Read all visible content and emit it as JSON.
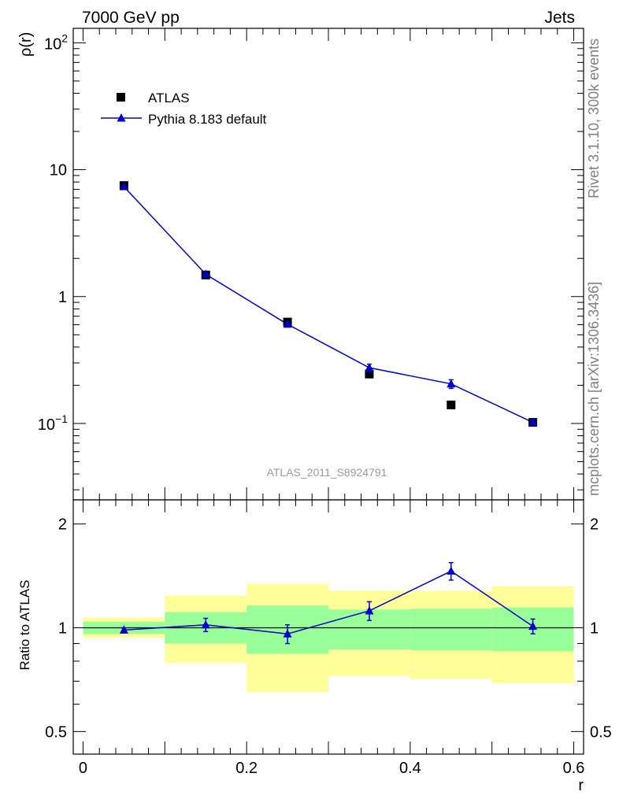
{
  "header": {
    "left": "7000 GeV pp",
    "right": "Jets"
  },
  "watermark": "ATLAS_2011_S8924791",
  "side_notes": {
    "rivet": "Rivet 3.1.10,  300k events",
    "mcplots": "mcplots.cern.ch [arXiv:1306.3436]"
  },
  "colors": {
    "mc": "#0000cc",
    "band_inner": "#99ff99",
    "band_outer": "#ffff99",
    "data": "#000000"
  },
  "chart_data": [
    {
      "type": "scatter",
      "name": "main",
      "ylabel": "ρ(r)",
      "yscale": "log",
      "ylim": [
        0.025,
        130
      ],
      "xlim": [
        -0.012,
        0.612
      ],
      "y_ticks": [
        {
          "value": 0.1,
          "base": "10",
          "exp": "−1"
        },
        {
          "value": 1,
          "label": "1"
        },
        {
          "value": 10,
          "label": "10"
        },
        {
          "value": 100,
          "base": "10",
          "exp": "2"
        }
      ],
      "legend": {
        "placement": "top-left",
        "entries": [
          "ATLAS",
          "Pythia 8.183 default"
        ]
      },
      "series": [
        {
          "name": "ATLAS",
          "marker": "square",
          "x": [
            0.05,
            0.15,
            0.25,
            0.35,
            0.45,
            0.55
          ],
          "y": [
            7.5,
            1.48,
            0.63,
            0.245,
            0.14,
            0.102
          ]
        },
        {
          "name": "Pythia 8.183 default",
          "marker": "triangle",
          "x": [
            0.05,
            0.15,
            0.25,
            0.35,
            0.45,
            0.55
          ],
          "y": [
            7.35,
            1.5,
            0.605,
            0.275,
            0.205,
            0.102
          ],
          "yerr": [
            0.1,
            0.03,
            0.02,
            0.018,
            0.016,
            0.005
          ]
        }
      ]
    },
    {
      "type": "scatter",
      "name": "ratio",
      "ylabel": "Ratio to ATLAS",
      "xlabel": "r",
      "yscale": "log",
      "ylim": [
        0.43,
        2.35
      ],
      "xlim": [
        -0.012,
        0.612
      ],
      "x_ticks": [
        {
          "value": 0,
          "label": "0"
        },
        {
          "value": 0.2,
          "label": "0.2"
        },
        {
          "value": 0.4,
          "label": "0.4"
        },
        {
          "value": 0.6,
          "label": "0.6"
        }
      ],
      "y_ticks": [
        {
          "value": 0.5,
          "label": "0.5"
        },
        {
          "value": 1,
          "label": "1"
        },
        {
          "value": 2,
          "label": "2"
        }
      ],
      "bands": [
        {
          "x0": 0.0,
          "x1": 0.1,
          "inner": [
            0.96,
            1.04
          ],
          "outer": [
            0.935,
            1.07
          ]
        },
        {
          "x0": 0.1,
          "x1": 0.2,
          "inner": [
            0.9,
            1.11
          ],
          "outer": [
            0.79,
            1.24
          ]
        },
        {
          "x0": 0.2,
          "x1": 0.3,
          "inner": [
            0.84,
            1.16
          ],
          "outer": [
            0.65,
            1.34
          ]
        },
        {
          "x0": 0.3,
          "x1": 0.4,
          "inner": [
            0.865,
            1.13
          ],
          "outer": [
            0.725,
            1.28
          ]
        },
        {
          "x0": 0.4,
          "x1": 0.5,
          "inner": [
            0.86,
            1.135
          ],
          "outer": [
            0.71,
            1.28
          ]
        },
        {
          "x0": 0.5,
          "x1": 0.6,
          "inner": [
            0.855,
            1.145
          ],
          "outer": [
            0.69,
            1.32
          ]
        }
      ],
      "series": [
        {
          "name": "Pythia 8.183 default / ATLAS",
          "x": [
            0.05,
            0.15,
            0.25,
            0.35,
            0.45,
            0.55
          ],
          "y": [
            0.985,
            1.02,
            0.96,
            1.12,
            1.46,
            1.01
          ],
          "yerr": [
            0.012,
            0.045,
            0.06,
            0.07,
            0.085,
            0.05
          ]
        }
      ]
    }
  ]
}
